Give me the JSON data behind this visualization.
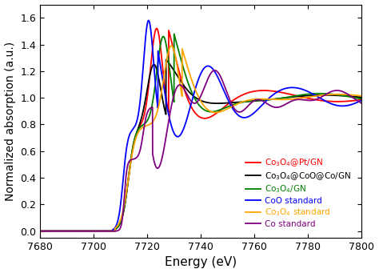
{
  "xlabel": "Energy (eV)",
  "ylabel": "Normalized absorption (a.u.)",
  "xlim": [
    7680,
    7800
  ],
  "ylim": [
    -0.05,
    1.7
  ],
  "yticks": [
    0.0,
    0.2,
    0.4,
    0.6,
    0.8,
    1.0,
    1.2,
    1.4,
    1.6
  ],
  "xticks": [
    7680,
    7700,
    7720,
    7740,
    7760,
    7780,
    7800
  ],
  "series": [
    {
      "label": "Co$_3$O$_4$@Pt/GN",
      "color": "#ff0000",
      "lw": 1.3
    },
    {
      "label": "Co$_3$O$_4$@CoO@Co/GN",
      "color": "#000000",
      "lw": 1.3
    },
    {
      "label": "Co$_3$O$_4$/GN",
      "color": "#008000",
      "lw": 1.3
    },
    {
      "label": "CoO standard",
      "color": "#0000ff",
      "lw": 1.3
    },
    {
      "label": "Co$_3$O$_4$ standard",
      "color": "#ffa500",
      "lw": 1.3
    },
    {
      "label": "Co standard",
      "color": "#800080",
      "lw": 1.3
    }
  ],
  "figsize": [
    4.74,
    3.41
  ],
  "dpi": 100
}
